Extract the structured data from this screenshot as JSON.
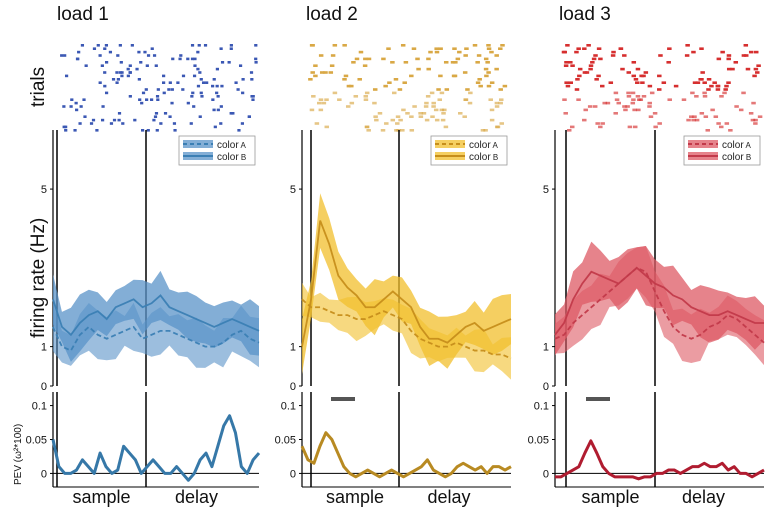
{
  "figure": {
    "raster_ylabel": "trials",
    "rate_ylabel": "firing rate (Hz)",
    "pev_ylabel": "PEV (ω²*100)",
    "rate_ticks": [
      "5",
      "1",
      "0"
    ],
    "pev_ticks": [
      "0.1",
      "0.05",
      "0"
    ],
    "epoch_labels": [
      "sample",
      "delay"
    ],
    "legend": [
      {
        "label": "color",
        "sub": "A",
        "style": "dashed"
      },
      {
        "label": "color",
        "sub": "B",
        "style": "solid"
      }
    ]
  },
  "chart_data": [
    {
      "type": "line",
      "title": "load 1",
      "colors": {
        "raster": "#3b58b4",
        "line": "#3b7fb4",
        "band": "#5a93c8",
        "pev": "#3678a8"
      },
      "xlim": [
        0,
        1
      ],
      "sample_onset": 0.06,
      "delay_onset": 0.5,
      "ylim": [
        0,
        6.5
      ],
      "series": [
        {
          "name": "color A",
          "style": "dashed",
          "values": [
            1.5,
            1.0,
            0.9,
            1.3,
            1.5,
            1.3,
            1.2,
            1.3,
            1.4,
            1.5,
            1.2,
            1.3,
            1.4,
            1.4,
            1.3,
            1.2,
            1.1,
            1.0,
            1.0,
            1.1,
            1.3,
            1.4,
            1.2,
            1.1
          ],
          "sem": 0.5
        },
        {
          "name": "color B",
          "style": "solid",
          "values": [
            2.2,
            1.5,
            1.3,
            1.6,
            1.8,
            1.9,
            1.7,
            2.0,
            2.1,
            2.2,
            2.0,
            2.1,
            2.3,
            2.0,
            1.9,
            1.8,
            1.7,
            1.6,
            1.5,
            1.6,
            1.7,
            1.6,
            1.5,
            1.4
          ],
          "sem": 0.55
        }
      ],
      "pev": {
        "ylim": [
          -0.02,
          0.12
        ],
        "values": [
          0.05,
          0.01,
          0.0,
          0.0,
          0.005,
          0.02,
          0.01,
          0.0,
          0.03,
          0.01,
          0.0,
          0.005,
          0.04,
          0.03,
          0.02,
          0.0,
          0.01,
          0.02,
          0.01,
          0.0,
          0.0,
          0.01,
          0.0,
          -0.01,
          0.0,
          0.02,
          0.03,
          0.01,
          0.04,
          0.07,
          0.085,
          0.06,
          0.01,
          0.0,
          0.02,
          0.03
        ]
      }
    },
    {
      "type": "line",
      "title": "load 2",
      "colors": {
        "raster": "#d9a845",
        "line": "#c68e1b",
        "band": "#f2bf2c",
        "pev": "#b88a22"
      },
      "xlim": [
        0,
        1
      ],
      "sample_onset": 0.06,
      "delay_onset": 0.5,
      "ylim": [
        0,
        6.5
      ],
      "series": [
        {
          "name": "color A",
          "style": "dashed",
          "values": [
            2.2,
            2.0,
            2.0,
            1.9,
            1.8,
            1.8,
            1.7,
            1.7,
            1.8,
            1.9,
            1.8,
            1.7,
            1.4,
            1.2,
            1.1,
            1.0,
            1.0,
            1.1,
            1.0,
            0.9,
            0.9,
            0.8,
            0.8,
            0.7
          ],
          "sem": 0.4
        },
        {
          "name": "color B",
          "style": "solid",
          "values": [
            1.0,
            2.2,
            4.2,
            3.6,
            2.8,
            2.5,
            2.3,
            2.0,
            2.0,
            2.2,
            2.4,
            2.2,
            2.0,
            1.5,
            1.2,
            1.2,
            1.1,
            1.3,
            1.5,
            1.6,
            1.4,
            1.5,
            1.6,
            1.7
          ],
          "sem": 0.55
        }
      ],
      "pev": {
        "ylim": [
          -0.02,
          0.12
        ],
        "values": [
          0.04,
          0.02,
          0.015,
          0.04,
          0.06,
          0.05,
          0.03,
          0.01,
          0.0,
          -0.005,
          0.0,
          0.005,
          0.0,
          -0.005,
          0.0,
          0.005,
          0.0,
          -0.005,
          0.0,
          0.005,
          0.01,
          0.02,
          0.005,
          0.0,
          -0.005,
          0.0,
          0.01,
          0.015,
          0.01,
          0.005,
          0.01,
          0.0,
          0.01,
          0.01,
          0.005,
          0.01
        ]
      }
    },
    {
      "type": "line",
      "title": "load 3",
      "colors": {
        "raster": "#d62f2f",
        "line": "#c23a4a",
        "band": "#de5a64",
        "pev": "#b01c30"
      },
      "xlim": [
        0,
        1
      ],
      "sample_onset": 0.06,
      "delay_onset": 0.5,
      "ylim": [
        0,
        6.5
      ],
      "series": [
        {
          "name": "color A",
          "style": "dashed",
          "values": [
            1.2,
            1.3,
            1.6,
            1.8,
            2.0,
            2.2,
            2.4,
            2.6,
            2.8,
            3.0,
            2.9,
            2.4,
            1.9,
            1.5,
            1.3,
            1.2,
            1.3,
            1.5,
            1.6,
            1.8,
            1.7,
            1.5,
            1.3,
            1.1
          ],
          "sem": 0.5
        },
        {
          "name": "color B",
          "style": "solid",
          "values": [
            1.3,
            1.6,
            2.2,
            2.6,
            2.9,
            2.8,
            2.7,
            2.6,
            2.8,
            3.0,
            2.8,
            2.6,
            2.5,
            2.3,
            2.2,
            2.0,
            1.9,
            1.8,
            1.8,
            1.9,
            1.8,
            1.7,
            1.6,
            1.6
          ],
          "sem": 0.6
        }
      ],
      "pev": {
        "ylim": [
          -0.02,
          0.12
        ],
        "values": [
          -0.005,
          -0.005,
          0.0,
          0.005,
          0.01,
          0.03,
          0.048,
          0.03,
          0.01,
          0.0,
          -0.005,
          -0.005,
          -0.005,
          -0.005,
          -0.008,
          -0.005,
          -0.005,
          0.0,
          0.0,
          0.005,
          0.005,
          0.0,
          0.005,
          0.01,
          0.01,
          0.015,
          0.01,
          0.01,
          0.015,
          0.005,
          0.01,
          0.0,
          0.0,
          -0.005,
          0.0,
          0.005
        ]
      }
    }
  ]
}
